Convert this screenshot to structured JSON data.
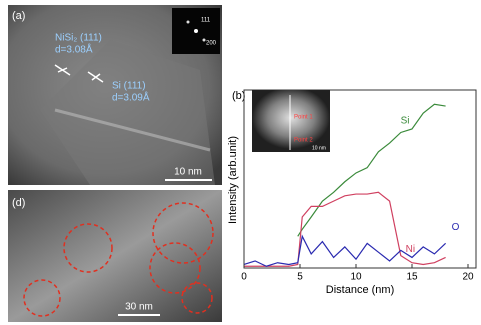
{
  "panels": {
    "a": {
      "label": "(a)",
      "phase1": "NiSi₂ (111)",
      "d1": "d=3.08Å",
      "phase2": "Si (111)",
      "d2": "d=3.09Å",
      "scale": "10 nm",
      "spot1": "111",
      "spot2": "200"
    },
    "b": {
      "label": "(b)",
      "point1": "Point 1",
      "point2": "Point 2",
      "scale": "10 nm"
    },
    "d": {
      "label": "(d)",
      "scale": "30 nm"
    }
  },
  "chart_data": {
    "type": "line",
    "xlabel": "Distance (nm)",
    "ylabel": "Intensity (arb.unit)",
    "x": [
      0,
      1,
      2,
      3,
      4,
      4.8,
      5.2,
      6,
      7,
      8,
      9,
      10,
      11,
      12,
      13,
      14,
      15,
      16,
      17,
      18
    ],
    "xlim": [
      0,
      20
    ],
    "xticks": [
      0,
      5,
      10,
      15,
      20
    ],
    "ylim": [
      0,
      100
    ],
    "series": [
      {
        "name": "Si",
        "color": "#3a8a3a",
        "values": [
          null,
          null,
          null,
          null,
          null,
          18,
          22,
          29,
          38,
          43,
          49,
          54,
          57,
          66,
          71,
          77,
          79,
          88,
          93,
          92
        ]
      },
      {
        "name": "Ni",
        "color": "#d04060",
        "values": [
          1,
          1,
          1,
          1,
          1,
          2,
          29,
          35,
          35,
          38,
          41,
          42,
          42,
          43,
          38,
          7,
          3,
          2,
          3,
          6
        ]
      },
      {
        "name": "O",
        "color": "#2a2ab0",
        "values": [
          2,
          4,
          1,
          3,
          2,
          3,
          18,
          8,
          15,
          6,
          12,
          5,
          14,
          9,
          4,
          10,
          6,
          12,
          8,
          14
        ]
      }
    ]
  }
}
